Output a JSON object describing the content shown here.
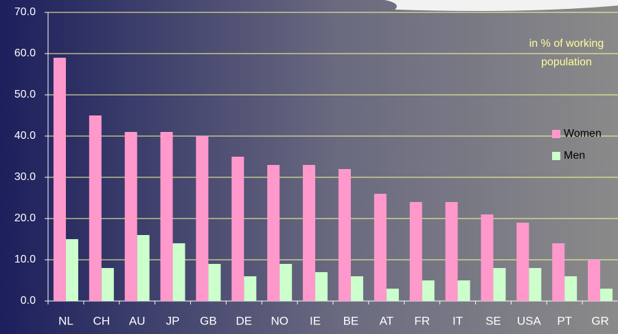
{
  "chart_data": {
    "type": "bar",
    "categories": [
      "NL",
      "CH",
      "AU",
      "JP",
      "GB",
      "DE",
      "NO",
      "IE",
      "BE",
      "AT",
      "FR",
      "IT",
      "SE",
      "USA",
      "PT",
      "GR"
    ],
    "series": [
      {
        "name": "Women",
        "color": "#ff99cc",
        "values": [
          59,
          45,
          41,
          41,
          40,
          35,
          33,
          33,
          32,
          26,
          24,
          24,
          21,
          19,
          14,
          10
        ]
      },
      {
        "name": "Men",
        "color": "#ccffcc",
        "values": [
          15,
          8,
          16,
          14,
          9,
          6,
          9,
          7,
          6,
          3,
          5,
          5,
          8,
          8,
          6,
          3
        ]
      }
    ],
    "annotation": [
      "in % of working",
      "population"
    ],
    "ylim": [
      0,
      70
    ],
    "yticks": [
      {
        "value": 0,
        "label": "0.0"
      },
      {
        "value": 10,
        "label": "10.0"
      },
      {
        "value": 20,
        "label": "20.0"
      },
      {
        "value": 30,
        "label": "30.0"
      },
      {
        "value": 40,
        "label": "40.0"
      },
      {
        "value": 50,
        "label": "50.0"
      },
      {
        "value": 60,
        "label": "60.0"
      },
      {
        "value": 70,
        "label": "70.0"
      }
    ],
    "grid": true,
    "legend": "right"
  }
}
